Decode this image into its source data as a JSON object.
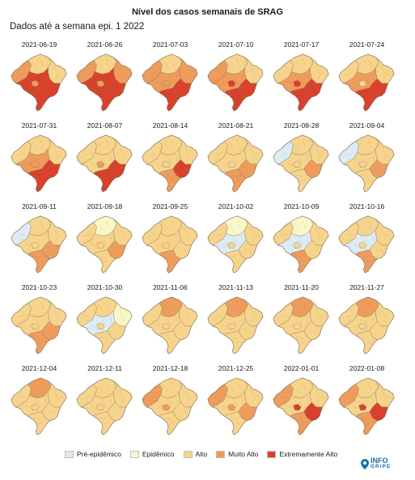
{
  "header": {
    "title": "Nível dos casos semanais de SRAG",
    "subtitle": "Dados até a semana epi. 1 2022"
  },
  "colors": {
    "pre": "#dcebf4",
    "epi": "#fbf6c8",
    "alto": "#f7d48c",
    "muito": "#ee9c5c",
    "extremo": "#d9412c",
    "border": "#7d6a55",
    "logo": "#1c6ea4"
  },
  "legend": [
    {
      "key": "pre",
      "label": "Pré-epidêmico"
    },
    {
      "key": "epi",
      "label": "Epidêmico"
    },
    {
      "key": "alto",
      "label": "Alto"
    },
    {
      "key": "muito",
      "label": "Muito Alto"
    },
    {
      "key": "extremo",
      "label": "Extremamente Alto"
    }
  ],
  "weeks": [
    {
      "date": "2021-06-19",
      "regions": {
        "n": "alto",
        "ne": "alto",
        "nw": "muito",
        "co": "extremo",
        "se": "extremo",
        "s": "extremo",
        "x": "muito"
      }
    },
    {
      "date": "2021-06-26",
      "regions": {
        "n": "alto",
        "ne": "muito",
        "nw": "muito",
        "co": "extremo",
        "se": "extremo",
        "s": "extremo",
        "x": "muito"
      }
    },
    {
      "date": "2021-07-03",
      "regions": {
        "n": "alto",
        "ne": "muito",
        "nw": "muito",
        "co": "muito",
        "se": "extremo",
        "s": "extremo",
        "x": "muito"
      }
    },
    {
      "date": "2021-07-10",
      "regions": {
        "n": "alto",
        "ne": "alto",
        "nw": "muito",
        "co": "muito",
        "se": "extremo",
        "s": "extremo",
        "x": "extremo"
      }
    },
    {
      "date": "2021-07-17",
      "regions": {
        "n": "alto",
        "ne": "alto",
        "nw": "alto",
        "co": "muito",
        "se": "extremo",
        "s": "extremo",
        "x": "extremo"
      }
    },
    {
      "date": "2021-07-24",
      "regions": {
        "n": "alto",
        "ne": "alto",
        "nw": "alto",
        "co": "muito",
        "se": "extremo",
        "s": "extremo",
        "x": "alto"
      }
    },
    {
      "date": "2021-07-31",
      "regions": {
        "n": "alto",
        "ne": "alto",
        "nw": "alto",
        "co": "muito",
        "se": "extremo",
        "s": "extremo",
        "x": "muito"
      }
    },
    {
      "date": "2021-08-07",
      "regions": {
        "n": "alto",
        "ne": "alto",
        "nw": "alto",
        "co": "alto",
        "se": "extremo",
        "s": "extremo",
        "x": "muito"
      }
    },
    {
      "date": "2021-08-14",
      "regions": {
        "n": "alto",
        "ne": "alto",
        "nw": "alto",
        "co": "alto",
        "se": "extremo",
        "s": "muito",
        "x": "alto"
      }
    },
    {
      "date": "2021-08-21",
      "regions": {
        "n": "alto",
        "ne": "alto",
        "nw": "alto",
        "co": "alto",
        "se": "muito",
        "s": "muito",
        "x": "alto"
      }
    },
    {
      "date": "2021-08-28",
      "regions": {
        "n": "alto",
        "ne": "alto",
        "nw": "pre",
        "co": "alto",
        "se": "muito",
        "s": "alto",
        "x": "alto"
      }
    },
    {
      "date": "2021-09-04",
      "regions": {
        "n": "alto",
        "ne": "alto",
        "nw": "pre",
        "co": "alto",
        "se": "muito",
        "s": "alto",
        "x": "alto"
      }
    },
    {
      "date": "2021-09-11",
      "regions": {
        "n": "alto",
        "ne": "alto",
        "nw": "pre",
        "co": "alto",
        "se": "muito",
        "s": "muito",
        "x": "alto"
      }
    },
    {
      "date": "2021-09-18",
      "regions": {
        "n": "epi",
        "ne": "alto",
        "nw": "alto",
        "co": "alto",
        "se": "muito",
        "s": "alto",
        "x": "alto"
      }
    },
    {
      "date": "2021-09-25",
      "regions": {
        "n": "alto",
        "ne": "alto",
        "nw": "alto",
        "co": "alto",
        "se": "alto",
        "s": "muito",
        "x": "alto"
      }
    },
    {
      "date": "2021-10-02",
      "regions": {
        "n": "epi",
        "ne": "alto",
        "nw": "alto",
        "co": "pre",
        "se": "alto",
        "s": "alto",
        "x": "alto"
      }
    },
    {
      "date": "2021-10-09",
      "regions": {
        "n": "epi",
        "ne": "alto",
        "nw": "alto",
        "co": "pre",
        "se": "alto",
        "s": "muito",
        "x": "alto"
      }
    },
    {
      "date": "2021-10-16",
      "regions": {
        "n": "alto",
        "ne": "alto",
        "nw": "alto",
        "co": "pre",
        "se": "alto",
        "s": "muito",
        "x": "alto"
      }
    },
    {
      "date": "2021-10-23",
      "regions": {
        "n": "alto",
        "ne": "alto",
        "nw": "alto",
        "co": "alto",
        "se": "muito",
        "s": "muito",
        "x": "alto"
      }
    },
    {
      "date": "2021-10-30",
      "regions": {
        "n": "alto",
        "ne": "epi",
        "nw": "alto",
        "co": "pre",
        "se": "alto",
        "s": "alto",
        "x": "alto"
      }
    },
    {
      "date": "2021-11-06",
      "regions": {
        "n": "muito",
        "ne": "alto",
        "nw": "alto",
        "co": "alto",
        "se": "alto",
        "s": "alto",
        "x": "alto"
      }
    },
    {
      "date": "2021-11-13",
      "regions": {
        "n": "muito",
        "ne": "alto",
        "nw": "alto",
        "co": "alto",
        "se": "alto",
        "s": "alto",
        "x": "alto"
      }
    },
    {
      "date": "2021-11-20",
      "regions": {
        "n": "muito",
        "ne": "alto",
        "nw": "alto",
        "co": "alto",
        "se": "alto",
        "s": "alto",
        "x": "alto"
      }
    },
    {
      "date": "2021-11-27",
      "regions": {
        "n": "muito",
        "ne": "alto",
        "nw": "alto",
        "co": "alto",
        "se": "alto",
        "s": "alto",
        "x": "alto"
      }
    },
    {
      "date": "2021-12-04",
      "regions": {
        "n": "muito",
        "ne": "alto",
        "nw": "alto",
        "co": "alto",
        "se": "alto",
        "s": "alto",
        "x": "alto"
      }
    },
    {
      "date": "2021-12-11",
      "regions": {
        "n": "alto",
        "ne": "alto",
        "nw": "alto",
        "co": "alto",
        "se": "alto",
        "s": "alto",
        "x": "alto"
      }
    },
    {
      "date": "2021-12-18",
      "regions": {
        "n": "alto",
        "ne": "alto",
        "nw": "muito",
        "co": "alto",
        "se": "alto",
        "s": "alto",
        "x": "muito"
      }
    },
    {
      "date": "2021-12-25",
      "regions": {
        "n": "alto",
        "ne": "alto",
        "nw": "muito",
        "co": "alto",
        "se": "muito",
        "s": "alto",
        "x": "muito"
      }
    },
    {
      "date": "2022-01-01",
      "regions": {
        "n": "alto",
        "ne": "alto",
        "nw": "muito",
        "co": "alto",
        "se": "extremo",
        "s": "muito",
        "x": "extremo"
      }
    },
    {
      "date": "2022-01-08",
      "regions": {
        "n": "alto",
        "ne": "alto",
        "nw": "muito",
        "co": "alto",
        "se": "extremo",
        "s": "muito",
        "x": "extremo"
      }
    }
  ],
  "logo": {
    "word1": "INFO",
    "word2": "GRIPE",
    "icon": "map-pin-icon"
  }
}
